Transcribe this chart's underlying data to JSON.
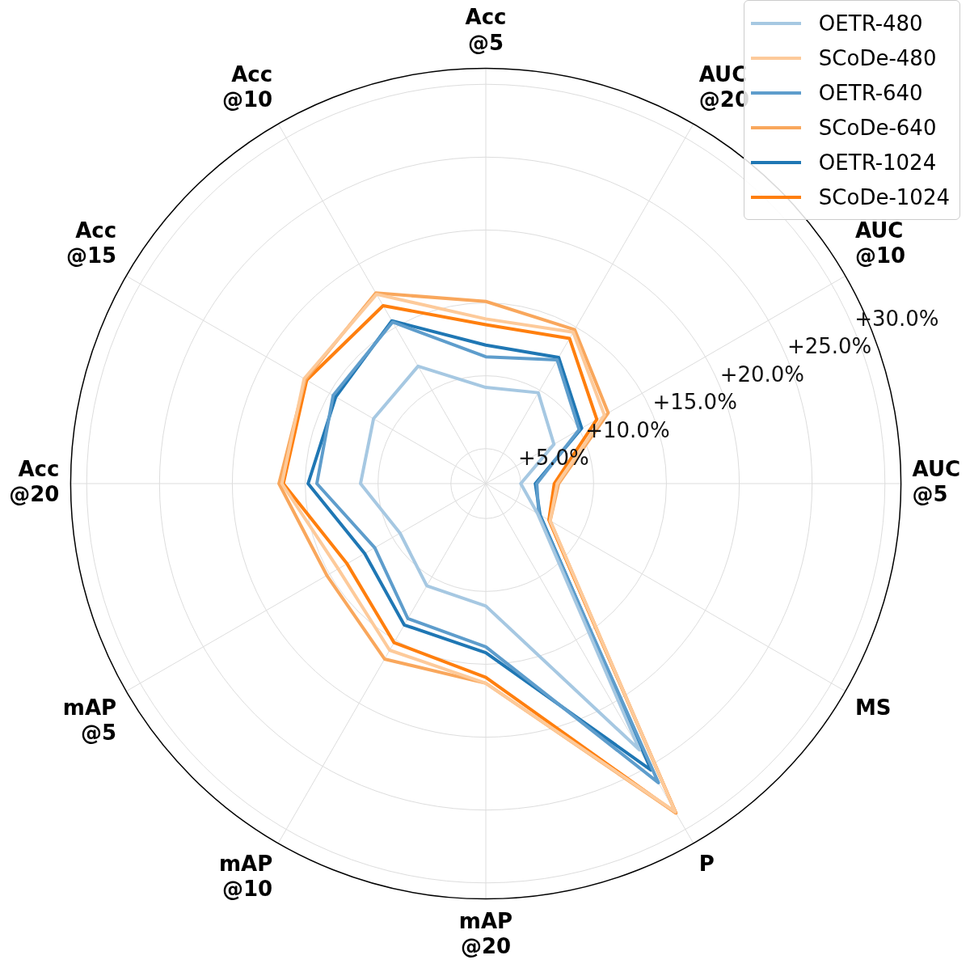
{
  "chart_data": {
    "type": "radar",
    "categories": [
      "Acc @5",
      "AUC @20",
      "AUC @10",
      "AUC @5",
      "MS",
      "P",
      "mAP @20",
      "mAP @10",
      "mAP @5",
      "Acc @20",
      "Acc @15",
      "Acc @10"
    ],
    "series": [
      {
        "name": "OETR-480",
        "color": "#a6c8e2",
        "values": [
          9.2,
          9.8,
          8.0,
          5.0,
          6.7,
          23.7,
          11.0,
          10.7,
          9.4,
          11.2,
          11.5,
          11.9
        ]
      },
      {
        "name": "SCoDe-480",
        "color": "#fdca9a",
        "values": [
          13.9,
          14.6,
          12.0,
          7.5,
          7.7,
          28.6,
          16.3,
          15.8,
          14.3,
          16.6,
          17.0,
          17.6
        ]
      },
      {
        "name": "OETR-640",
        "color": "#5e9dcc",
        "values": [
          11.3,
          12.4,
          10.0,
          6.1,
          6.8,
          26.3,
          13.8,
          13.3,
          11.4,
          14.2,
          14.7,
          15.4
        ]
      },
      {
        "name": "SCoDe-640",
        "color": "#f9a75c",
        "values": [
          15.1,
          14.8,
          12.3,
          7.6,
          7.7,
          28.7,
          16.3,
          16.5,
          15.2,
          16.8,
          16.9,
          17.7
        ]
      },
      {
        "name": "OETR-1024",
        "color": "#1f77b4",
        "values": [
          12.1,
          12.6,
          10.2,
          6.0,
          6.9,
          25.3,
          14.2,
          13.8,
          12.2,
          14.8,
          14.5,
          15.5
        ]
      },
      {
        "name": "SCoDe-1024",
        "color": "#ff7f0e",
        "values": [
          13.5,
          14.1,
          11.4,
          7.3,
          7.6,
          28.7,
          15.9,
          15.2,
          13.6,
          16.5,
          16.8,
          16.7
        ]
      }
    ],
    "ylim": [
      2.6,
      31.1
    ],
    "yticks": [
      {
        "value": 5,
        "label": "+5.0%"
      },
      {
        "value": 10,
        "label": "+10.0%"
      },
      {
        "value": 15,
        "label": "+15.0%"
      },
      {
        "value": 20,
        "label": "+20.0%"
      },
      {
        "value": 25,
        "label": "+25.0%"
      },
      {
        "value": 30,
        "label": "+30.0%"
      }
    ],
    "grid": true,
    "legend": "top right",
    "marker": "none",
    "line_style": "solid"
  }
}
